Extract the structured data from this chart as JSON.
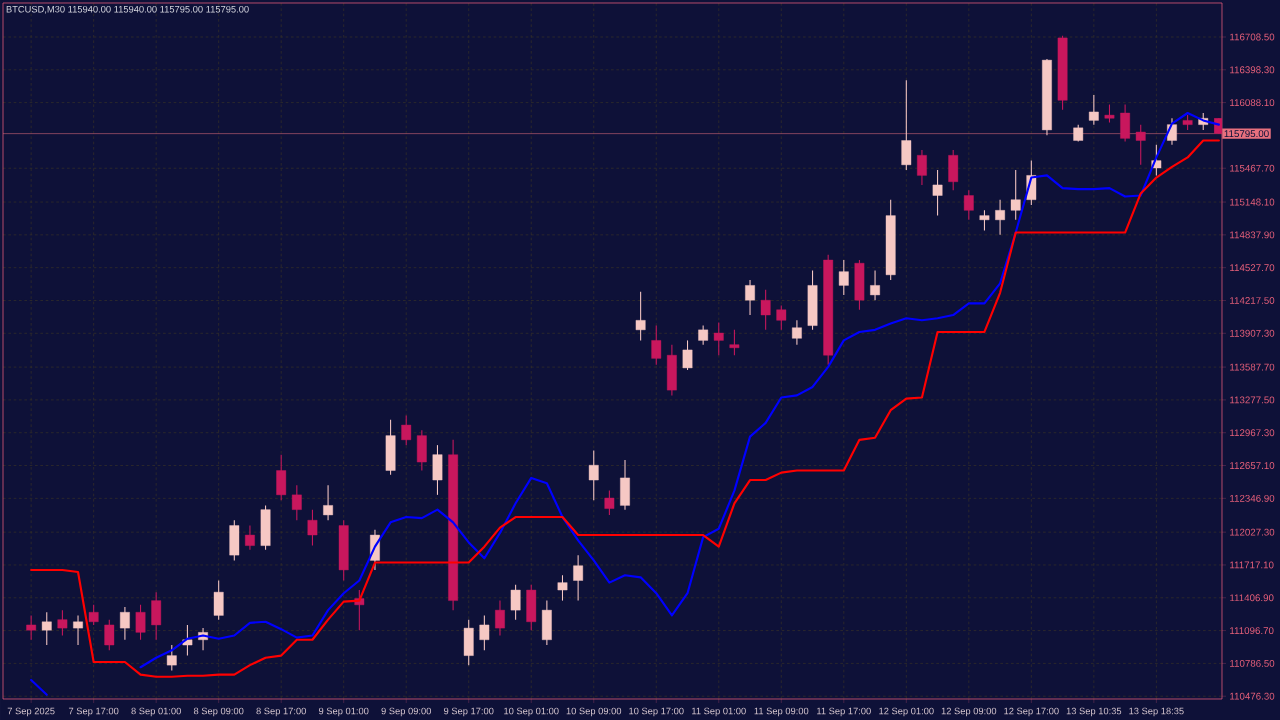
{
  "chart_data": {
    "type": "candlestick",
    "title": "BTCUSD,M30  115940.00 115940.00 115795.00 115795.00",
    "categories": [
      "7 Sep 2025",
      null,
      null,
      null,
      "7 Sep 17:00",
      null,
      null,
      null,
      "8 Sep 01:00",
      null,
      null,
      null,
      "8 Sep 09:00",
      null,
      null,
      null,
      "8 Sep 17:00",
      null,
      null,
      null,
      "9 Sep 01:00",
      null,
      null,
      null,
      "9 Sep 09:00",
      null,
      null,
      null,
      "9 Sep 17:00",
      null,
      null,
      null,
      "10 Sep 01:00",
      null,
      null,
      null,
      "10 Sep 09:00",
      null,
      null,
      null,
      "10 Sep 17:00",
      null,
      null,
      null,
      "11 Sep 01:00",
      null,
      null,
      null,
      "11 Sep 09:00",
      null,
      null,
      null,
      "11 Sep 17:00",
      null,
      null,
      null,
      "12 Sep 01:00",
      null,
      null,
      null,
      "12 Sep 09:00",
      null,
      null,
      null,
      "12 Sep 17:00",
      null,
      null,
      null,
      "13 Sep 10:35",
      null,
      null,
      null,
      "13 Sep 18:35",
      null,
      null,
      null,
      null
    ],
    "ohlc": [
      [
        111150,
        111240,
        111010,
        111100
      ],
      [
        111100,
        111270,
        110960,
        111180
      ],
      [
        111200,
        111290,
        111050,
        111120
      ],
      [
        111120,
        111240,
        110960,
        111180
      ],
      [
        111270,
        111340,
        111150,
        111180
      ],
      [
        111150,
        111200,
        110910,
        110960
      ],
      [
        111120,
        111320,
        111010,
        111270
      ],
      [
        111270,
        111340,
        111010,
        111080
      ],
      [
        111380,
        111460,
        111010,
        111150
      ],
      [
        110770,
        110960,
        110720,
        110860
      ],
      [
        110960,
        111150,
        110860,
        111010
      ],
      [
        111010,
        111120,
        110910,
        111080
      ],
      [
        111240,
        111570,
        111200,
        111460
      ],
      [
        111810,
        112140,
        111760,
        112090
      ],
      [
        112000,
        112090,
        111860,
        111900
      ],
      [
        111900,
        112280,
        111860,
        112240
      ],
      [
        112610,
        112760,
        112330,
        112380
      ],
      [
        112380,
        112470,
        112140,
        112240
      ],
      [
        112140,
        112240,
        111900,
        112000
      ],
      [
        112190,
        112470,
        112140,
        112280
      ],
      [
        112090,
        112140,
        111570,
        111670
      ],
      [
        111400,
        111480,
        111100,
        111340
      ],
      [
        111760,
        112050,
        111670,
        112000
      ],
      [
        112610,
        113090,
        112570,
        112940
      ],
      [
        113040,
        113130,
        112850,
        112900
      ],
      [
        112940,
        112990,
        112610,
        112690
      ],
      [
        112520,
        112850,
        112380,
        112760
      ],
      [
        112760,
        112900,
        111290,
        111380
      ],
      [
        110860,
        111200,
        110770,
        111120
      ],
      [
        111010,
        111240,
        110910,
        111150
      ],
      [
        111290,
        111380,
        111050,
        111120
      ],
      [
        111290,
        111530,
        111200,
        111480
      ],
      [
        111480,
        111530,
        111100,
        111180
      ],
      [
        111010,
        111380,
        110960,
        111290
      ],
      [
        111480,
        111620,
        111380,
        111550
      ],
      [
        111570,
        111810,
        111380,
        111710
      ],
      [
        112520,
        112800,
        112330,
        112660
      ],
      [
        112350,
        112420,
        112190,
        112250
      ],
      [
        112280,
        112710,
        112240,
        112540
      ],
      [
        113940,
        114300,
        113840,
        114030
      ],
      [
        113840,
        113980,
        113610,
        113670
      ],
      [
        113700,
        113800,
        113320,
        113370
      ],
      [
        113580,
        113840,
        113560,
        113750
      ],
      [
        113840,
        113980,
        113800,
        113940
      ],
      [
        113910,
        114010,
        113700,
        113840
      ],
      [
        113800,
        113940,
        113700,
        113770
      ],
      [
        114220,
        114410,
        114080,
        114360
      ],
      [
        114220,
        114320,
        113940,
        114080
      ],
      [
        114130,
        114170,
        113940,
        114030
      ],
      [
        113860,
        114030,
        113800,
        113960
      ],
      [
        113980,
        114500,
        113940,
        114360
      ],
      [
        114600,
        114650,
        113610,
        113700
      ],
      [
        114360,
        114600,
        114270,
        114490
      ],
      [
        114570,
        114600,
        114130,
        114220
      ],
      [
        114270,
        114500,
        114220,
        114360
      ],
      [
        114460,
        115170,
        114410,
        115020
      ],
      [
        115500,
        116300,
        115450,
        115730
      ],
      [
        115590,
        115640,
        115310,
        115400
      ],
      [
        115210,
        115450,
        115020,
        115310
      ],
      [
        115590,
        115640,
        115260,
        115340
      ],
      [
        115210,
        115260,
        114980,
        115070
      ],
      [
        114980,
        115070,
        114880,
        115020
      ],
      [
        114980,
        115170,
        114840,
        115070
      ],
      [
        115070,
        115450,
        114980,
        115170
      ],
      [
        115170,
        115540,
        115120,
        115400
      ],
      [
        115830,
        116500,
        115780,
        116490
      ],
      [
        116700,
        116720,
        116020,
        116110
      ],
      [
        115730,
        115880,
        115720,
        115850
      ],
      [
        115920,
        116160,
        115880,
        116000
      ],
      [
        115970,
        116070,
        115900,
        115940
      ],
      [
        115990,
        116070,
        115720,
        115750
      ],
      [
        115810,
        115880,
        115500,
        115730
      ],
      [
        115470,
        115690,
        115400,
        115540
      ],
      [
        115730,
        115940,
        115690,
        115880
      ],
      [
        115920,
        115970,
        115830,
        115880
      ],
      [
        115880,
        115990,
        115830,
        115940
      ],
      [
        115940,
        115940,
        115795,
        115795
      ]
    ],
    "colors": [
      "#c8175d",
      "#f6c8c4",
      "#c8175d",
      "#f6c8c4",
      "#c8175d",
      "#c8175d",
      "#f6c8c4",
      "#c8175d",
      "#c8175d",
      "#f6c8c4",
      "#f6c8c4",
      "#f6c8c4",
      "#f6c8c4",
      "#f6c8c4",
      "#c8175d",
      "#f6c8c4",
      "#c8175d",
      "#c8175d",
      "#c8175d",
      "#f6c8c4",
      "#c8175d",
      "#c8175d",
      "#f6c8c4",
      "#f6c8c4",
      "#c8175d",
      "#c8175d",
      "#f6c8c4",
      "#c8175d",
      "#f6c8c4",
      "#f6c8c4",
      "#c8175d",
      "#f6c8c4",
      "#c8175d",
      "#f6c8c4",
      "#f6c8c4",
      "#f6c8c4",
      "#f6c8c4",
      "#c8175d",
      "#f6c8c4",
      "#f6c8c4",
      "#c8175d",
      "#c8175d",
      "#f6c8c4",
      "#f6c8c4",
      "#c8175d",
      "#c8175d",
      "#f6c8c4",
      "#c8175d",
      "#c8175d",
      "#f6c8c4",
      "#f6c8c4",
      "#c8175d",
      "#f6c8c4",
      "#c8175d",
      "#f6c8c4",
      "#f6c8c4",
      "#f6c8c4",
      "#c8175d",
      "#f6c8c4",
      "#c8175d",
      "#c8175d",
      "#f6c8c4",
      "#f6c8c4",
      "#f6c8c4",
      "#f6c8c4",
      "#f6c8c4",
      "#c8175d",
      "#f6c8c4",
      "#f6c8c4",
      "#c8175d",
      "#c8175d",
      "#c8175d",
      "#f6c8c4",
      "#f6c8c4",
      "#c8175d",
      "#f6c8c4",
      "#c8175d"
    ],
    "series": [
      {
        "type": "line",
        "color": "#0000ff",
        "values": [
          110630,
          110490,
          null,
          null,
          null,
          null,
          null,
          110750,
          110840,
          110910,
          111020,
          111050,
          111020,
          111050,
          111170,
          111180,
          111110,
          111030,
          111050,
          111290,
          111450,
          111570,
          111890,
          112120,
          112170,
          112160,
          112240,
          112120,
          111930,
          111780,
          112020,
          112300,
          112540,
          112490,
          112170,
          111950,
          111760,
          111550,
          111620,
          111600,
          111450,
          111240,
          111450,
          111980,
          112060,
          112420,
          112930,
          113060,
          113300,
          113320,
          113400,
          113590,
          113840,
          113920,
          113940,
          114000,
          114050,
          114030,
          114050,
          114080,
          114190,
          114190,
          114380,
          114860,
          115380,
          115400,
          115280,
          115270,
          115270,
          115280,
          115200,
          115210,
          115570,
          115890,
          115990,
          115920,
          115880
        ]
      },
      {
        "type": "line",
        "color": "#ff0000",
        "values": [
          111670,
          111670,
          111670,
          111650,
          110800,
          110800,
          110800,
          110680,
          110660,
          110660,
          110670,
          110670,
          110680,
          110680,
          110770,
          110840,
          110860,
          111010,
          111010,
          111200,
          111370,
          111380,
          111740,
          111740,
          111740,
          111740,
          111740,
          111740,
          111740,
          111890,
          112070,
          112170,
          112170,
          112170,
          112170,
          112000,
          112000,
          112000,
          112000,
          112000,
          112000,
          112000,
          112000,
          112000,
          111890,
          112300,
          112520,
          112520,
          112590,
          112610,
          112610,
          112610,
          112610,
          112900,
          112920,
          113180,
          113290,
          113300,
          113920,
          113920,
          113920,
          113920,
          114290,
          114860,
          114860,
          114860,
          114860,
          114860,
          114860,
          114860,
          114860,
          115230,
          115380,
          115480,
          115570,
          115730,
          115730
        ]
      }
    ],
    "ylim": [
      110450,
      117030
    ],
    "yticks": [
      {
        "value": 110476.3,
        "label": "110476.30"
      },
      {
        "value": 110786.5,
        "label": "110786.50"
      },
      {
        "value": 111096.7,
        "label": "111096.70"
      },
      {
        "value": 111406.9,
        "label": "111406.90"
      },
      {
        "value": 111717.1,
        "label": "111717.10"
      },
      {
        "value": 112027.3,
        "label": "112027.30"
      },
      {
        "value": 112346.9,
        "label": "112346.90"
      },
      {
        "value": 112657.1,
        "label": "112657.10"
      },
      {
        "value": 112967.3,
        "label": "112967.30"
      },
      {
        "value": 113277.5,
        "label": "113277.50"
      },
      {
        "value": 113587.7,
        "label": "113587.70"
      },
      {
        "value": 113907.3,
        "label": "113907.30"
      },
      {
        "value": 114217.5,
        "label": "114217.50"
      },
      {
        "value": 114527.7,
        "label": "114527.70"
      },
      {
        "value": 114837.9,
        "label": "114837.90"
      },
      {
        "value": 115148.1,
        "label": "115148.10"
      },
      {
        "value": 115467.7,
        "label": "115467.70"
      },
      {
        "value": 116088.1,
        "label": "116088.10"
      },
      {
        "value": 116398.3,
        "label": "116398.30"
      },
      {
        "value": 116708.5,
        "label": "116708.50"
      }
    ],
    "ref_lines": [
      {
        "axis": "y",
        "value": 115795,
        "label": "115795.00",
        "color": "#e8707e"
      }
    ],
    "grid": true,
    "marker": "none",
    "line_style": "solid"
  }
}
